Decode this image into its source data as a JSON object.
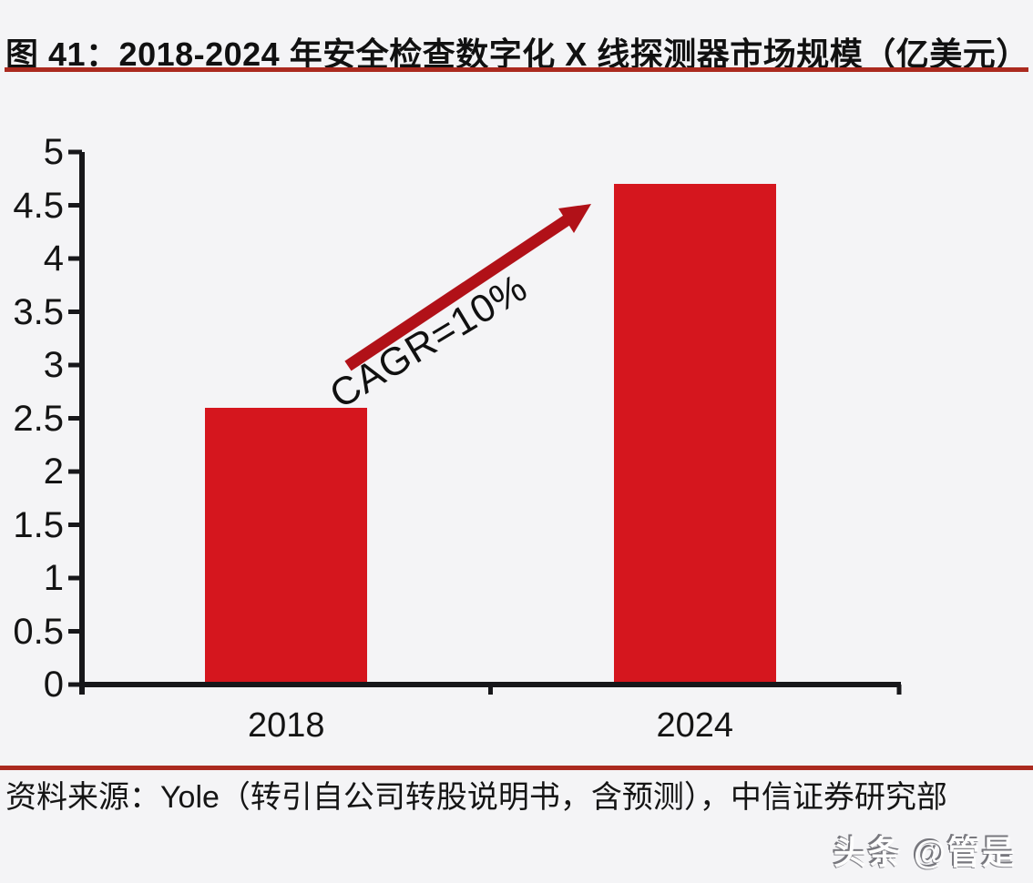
{
  "figure": {
    "title_full": "图 41：2018-2024 年安全检查数字化 X 线探测器市场规模（亿美元）",
    "figure_label": "图 41",
    "source_line": "资料来源：Yole（转引自公司转股说明书，含预测），中信证券研究部",
    "watermark": "头条 @管是",
    "rule_color": "#ab2a1f"
  },
  "chart_data": {
    "type": "bar",
    "title": "2018-2024 年安全检查数字化 X 线探测器市场规模（亿美元）",
    "unit": "亿美元",
    "categories": [
      "2018",
      "2024"
    ],
    "values": [
      2.6,
      4.7
    ],
    "xlabel": "",
    "ylabel": "",
    "ylim": [
      0,
      5
    ],
    "yticks": [
      0,
      0.5,
      1,
      1.5,
      2,
      2.5,
      3,
      3.5,
      4,
      4.5,
      5
    ],
    "grid": false,
    "legend_position": "none",
    "bar_color": "#d5161e",
    "axis_color": "#17171a",
    "annotation": {
      "text": "CAGR=10%",
      "text_color": "#101010",
      "arrow_color": "#b11118"
    }
  }
}
